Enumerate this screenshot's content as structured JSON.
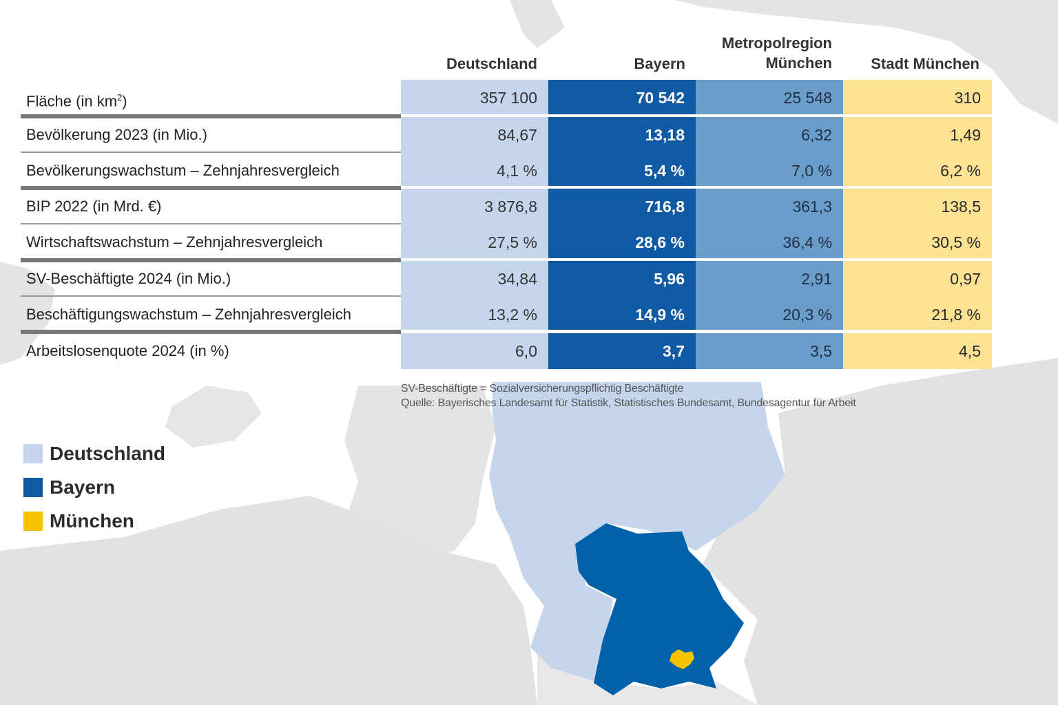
{
  "colors": {
    "deutschland": "#c5d6ec",
    "bayern": "#0f5aa2",
    "metropolregion": "#6b9dcb",
    "stadt": "#fde293",
    "muenchen_marker": "#f7c200",
    "land": "#e3e3e3"
  },
  "table": {
    "headers": {
      "deutschland": "Deutschland",
      "bayern": "Bayern",
      "metropolregion_line1": "Metropolregion",
      "metropolregion_line2": "München",
      "stadt": "Stadt München"
    },
    "rows": [
      {
        "label": "Fläche (in km",
        "label_sup": "2",
        "label_end": ")",
        "deutschland": "357 100",
        "bayern": "70 542",
        "metropolregion": "25 548",
        "stadt": "310"
      },
      {
        "label": "Bevölkerung 2023 (in Mio.)",
        "deutschland": "84,67",
        "bayern": "13,18",
        "metropolregion": "6,32",
        "stadt": "1,49"
      },
      {
        "label": "Bevölkerungswachstum – Zehnjahresvergleich",
        "deutschland": "4,1 %",
        "bayern": "5,4 %",
        "metropolregion": "7,0 %",
        "stadt": "6,2 %"
      },
      {
        "label": "BIP 2022 (in Mrd. €)",
        "deutschland": "3 876,8",
        "bayern": "716,8",
        "metropolregion": "361,3",
        "stadt": "138,5"
      },
      {
        "label": "Wirtschaftswachstum – Zehnjahresvergleich",
        "deutschland": "27,5 %",
        "bayern": "28,6 %",
        "metropolregion": "36,4 %",
        "stadt": "30,5 %"
      },
      {
        "label": "SV-Beschäftigte 2024 (in Mio.)",
        "deutschland": "34,84",
        "bayern": "5,96",
        "metropolregion": "2,91",
        "stadt": "0,97"
      },
      {
        "label": "Beschäftigungswachstum – Zehnjahresvergleich",
        "deutschland": "13,2 %",
        "bayern": "14,9 %",
        "metropolregion": "20,3 %",
        "stadt": "21,8 %"
      },
      {
        "label": "Arbeitslosenquote 2024 (in %)",
        "deutschland": "6,0",
        "bayern": "3,7",
        "metropolregion": "3,5",
        "stadt": "4,5"
      }
    ]
  },
  "notes": {
    "definition": "SV-Beschäftigte = Sozialversicherungspflichtig Beschäftigte",
    "source": "Quelle: Bayerisches Landesamt für Statistik, Statistisches Bundesamt, Bundesagentur für Arbeit"
  },
  "legend": [
    {
      "label": "Deutschland",
      "color": "#c5d6ec"
    },
    {
      "label": "Bayern",
      "color": "#0f5aa2"
    },
    {
      "label": "München",
      "color": "#f7c200"
    }
  ]
}
